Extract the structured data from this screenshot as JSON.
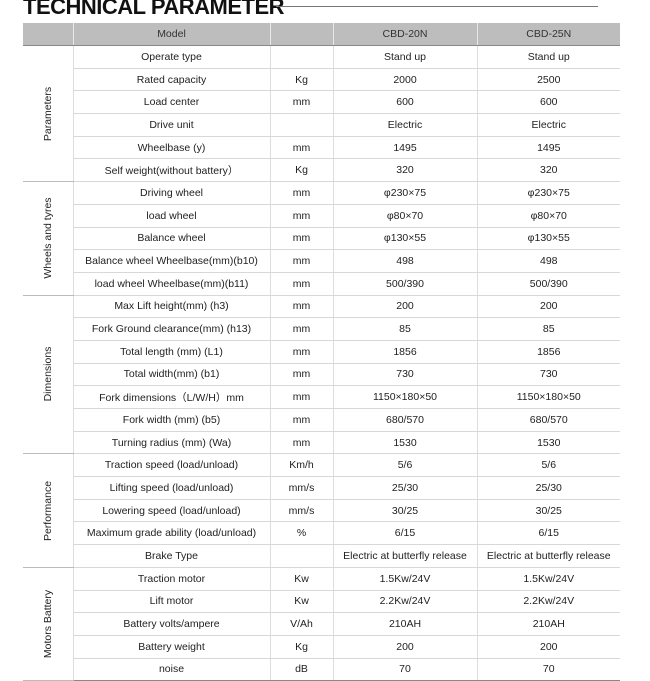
{
  "title": "TECHNICAL PARAMETER",
  "header": {
    "label": "Model",
    "unit": "",
    "models": [
      "CBD-20N",
      "CBD-25N"
    ]
  },
  "groups": [
    {
      "name": "Parameters",
      "rows": [
        [
          "Operate type",
          "",
          "Stand up",
          "Stand up"
        ],
        [
          "Rated capacity",
          "Kg",
          "2000",
          "2500"
        ],
        [
          "Load center",
          "mm",
          "600",
          "600"
        ],
        [
          "Drive unit",
          "",
          "Electric",
          "Electric"
        ],
        [
          "Wheelbase (y)",
          "mm",
          "1495",
          "1495"
        ],
        [
          "Self weight(without battery）",
          "Kg",
          "320",
          "320"
        ]
      ]
    },
    {
      "name": "Wheels and tyres",
      "rows": [
        [
          "Driving wheel",
          "mm",
          "φ230×75",
          "φ230×75"
        ],
        [
          "load wheel",
          "mm",
          "φ80×70",
          "φ80×70"
        ],
        [
          "Balance wheel",
          "mm",
          "φ130×55",
          "φ130×55"
        ],
        [
          "Balance wheel Wheelbase(mm)(b10)",
          "mm",
          "498",
          "498"
        ],
        [
          "load wheel Wheelbase(mm)(b11)",
          "mm",
          "500/390",
          "500/390"
        ]
      ]
    },
    {
      "name": "Dimensions",
      "rows": [
        [
          "Max Lift height(mm)     (h3)",
          "mm",
          "200",
          "200"
        ],
        [
          "Fork Ground clearance(mm) (h13)",
          "mm",
          "85",
          "85"
        ],
        [
          "Total length    (mm) (L1)",
          "mm",
          "1856",
          "1856"
        ],
        [
          "Total width(mm) (b1)",
          "mm",
          "730",
          "730"
        ],
        [
          "Fork dimensions（L/W/H）mm",
          "mm",
          "1150×180×50",
          "1150×180×50"
        ],
        [
          "Fork width (mm) (b5)",
          "mm",
          "680/570",
          "680/570"
        ],
        [
          "Turning radius    (mm)    (Wa)",
          "mm",
          "1530",
          "1530"
        ]
      ]
    },
    {
      "name": "Performance",
      "rows": [
        [
          "Traction speed (load/unload)",
          "Km/h",
          "5/6",
          "5/6"
        ],
        [
          "Lifting speed (load/unload)",
          "mm/s",
          "25/30",
          "25/30"
        ],
        [
          "Lowering speed (load/unload)",
          "mm/s",
          "30/25",
          "30/25"
        ],
        [
          "Maximum grade ability (load/unload)",
          "%",
          "6/15",
          "6/15"
        ],
        [
          "Brake Type",
          "",
          "Electric at butterfly release",
          "Electric at butterfly release"
        ]
      ]
    },
    {
      "name": "Motors Battery",
      "rows": [
        [
          "Traction motor",
          "Kw",
          "1.5Kw/24V",
          "1.5Kw/24V"
        ],
        [
          "Lift motor",
          "Kw",
          "2.2Kw/24V",
          "2.2Kw/24V"
        ],
        [
          "Battery volts/ampere",
          "V/Ah",
          "210AH",
          "210AH"
        ],
        [
          "Battery weight",
          "Kg",
          "200",
          "200"
        ],
        [
          "noise",
          "dB",
          "70",
          "70"
        ]
      ]
    }
  ]
}
